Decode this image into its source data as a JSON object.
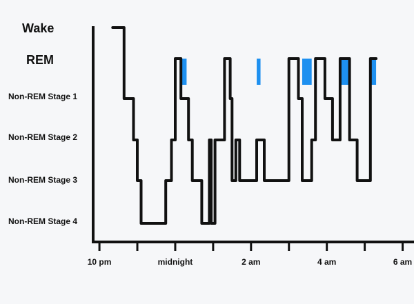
{
  "chart_data": {
    "type": "line",
    "title": "",
    "xlabel": "",
    "ylabel": "",
    "y_categories": [
      "Non-REM Stage 4",
      "Non-REM Stage 3",
      "Non-REM Stage 2",
      "Non-REM Stage 1",
      "REM",
      "Wake"
    ],
    "x_ticks": [
      {
        "label": "10 pm",
        "hour": 22
      },
      {
        "label": "",
        "hour": 23
      },
      {
        "label": "midnight",
        "hour": 24
      },
      {
        "label": "",
        "hour": 25
      },
      {
        "label": "2 am",
        "hour": 26
      },
      {
        "label": "",
        "hour": 27
      },
      {
        "label": "4 am",
        "hour": 28
      },
      {
        "label": "",
        "hour": 29
      },
      {
        "label": "6 am",
        "hour": 30
      }
    ],
    "xlim": [
      21.98,
      30.3
    ],
    "colors": {
      "line": "#111111",
      "rem_fill": "#1e90f0",
      "axis": "#111111"
    },
    "series": [
      {
        "values": [
          [
            22.35,
            5
          ],
          [
            22.65,
            5
          ],
          [
            22.65,
            3
          ],
          [
            22.9,
            3
          ],
          [
            22.9,
            2
          ],
          [
            23.0,
            2
          ],
          [
            23.0,
            1
          ],
          [
            23.1,
            1
          ],
          [
            23.1,
            0
          ],
          [
            23.75,
            0
          ],
          [
            23.75,
            1
          ],
          [
            23.9,
            1
          ],
          [
            23.9,
            2
          ],
          [
            24.0,
            2
          ],
          [
            24.0,
            4
          ],
          [
            24.15,
            4
          ],
          [
            24.15,
            3
          ],
          [
            24.35,
            3
          ],
          [
            24.35,
            2
          ],
          [
            24.45,
            2
          ],
          [
            24.45,
            1
          ],
          [
            24.7,
            1
          ],
          [
            24.7,
            0
          ],
          [
            24.9,
            0
          ],
          [
            24.9,
            2
          ],
          [
            24.95,
            2
          ],
          [
            24.95,
            0
          ],
          [
            25.05,
            0
          ],
          [
            25.05,
            2
          ],
          [
            25.3,
            2
          ],
          [
            25.3,
            4
          ],
          [
            25.45,
            4
          ],
          [
            25.45,
            3
          ],
          [
            25.5,
            3
          ],
          [
            25.5,
            1
          ],
          [
            25.6,
            1
          ],
          [
            25.6,
            2
          ],
          [
            25.7,
            2
          ],
          [
            25.7,
            1
          ],
          [
            26.15,
            1
          ],
          [
            26.15,
            2
          ],
          [
            26.35,
            2
          ],
          [
            26.35,
            1
          ],
          [
            27.0,
            1
          ],
          [
            27.0,
            4
          ],
          [
            27.25,
            4
          ],
          [
            27.25,
            3
          ],
          [
            27.35,
            3
          ],
          [
            27.35,
            1
          ],
          [
            27.6,
            1
          ],
          [
            27.6,
            2
          ],
          [
            27.7,
            2
          ],
          [
            27.7,
            4
          ],
          [
            27.95,
            4
          ],
          [
            27.95,
            3
          ],
          [
            28.15,
            3
          ],
          [
            28.15,
            2
          ],
          [
            28.35,
            2
          ],
          [
            28.35,
            4
          ],
          [
            28.6,
            4
          ],
          [
            28.6,
            2
          ],
          [
            28.8,
            2
          ],
          [
            28.8,
            1
          ],
          [
            29.15,
            1
          ],
          [
            29.15,
            4
          ],
          [
            29.3,
            4
          ]
        ]
      }
    ],
    "rem_periods": [
      [
        24.15,
        24.3
      ],
      [
        26.15,
        26.25
      ],
      [
        27.35,
        27.6
      ],
      [
        28.35,
        28.6
      ],
      [
        29.15,
        29.3
      ]
    ]
  }
}
